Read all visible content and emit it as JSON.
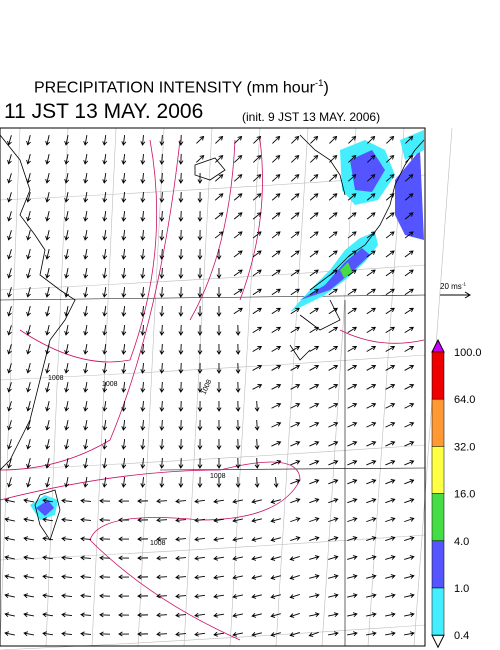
{
  "title": {
    "text": "PRECIPITATION INTENSITY (mm hour",
    "superscript": "-1",
    "close": ")"
  },
  "time": "11 JST 13 MAY. 2006",
  "init": "(init. 9 JST 13 MAY. 2006)",
  "vector_scale": {
    "label": "20 ms",
    "superscript": "-1"
  },
  "colorbar": {
    "labels": [
      "100.0",
      "64.0",
      "32.0",
      "16.0",
      "4.0",
      "1.0",
      "0.4"
    ],
    "colors": [
      "#cc00ff",
      "#ee0000",
      "#ff9933",
      "#ffff44",
      "#44dd44",
      "#5555ff",
      "#44eeff",
      "#ffffff"
    ]
  },
  "contour_labels": [
    "1008",
    "1008",
    "1008",
    "1008",
    "1008"
  ]
}
